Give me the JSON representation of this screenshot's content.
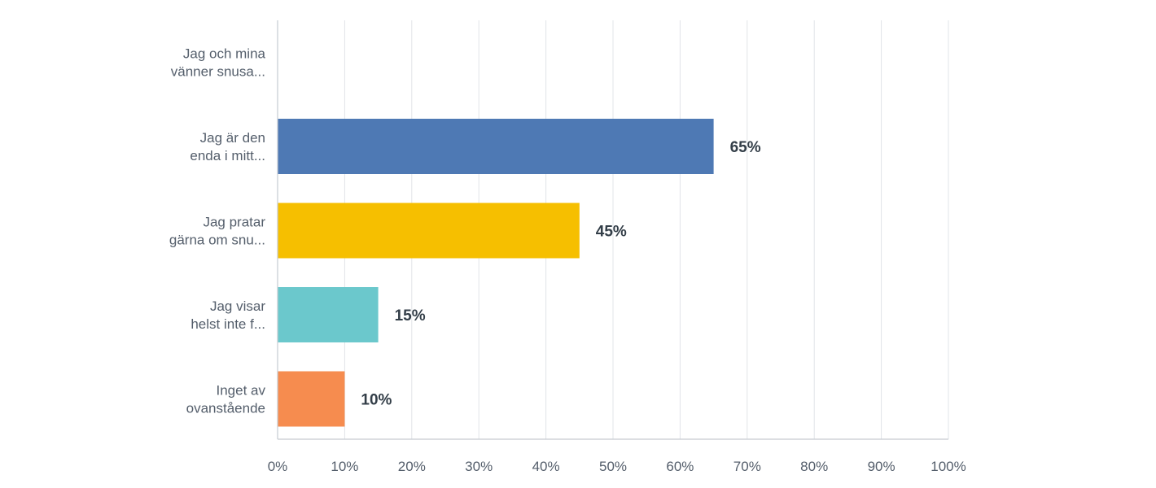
{
  "chart_data": {
    "type": "bar",
    "orientation": "horizontal",
    "categories": [
      [
        "Jag och mina",
        "vänner snusa..."
      ],
      [
        "Jag är den",
        "enda i mitt..."
      ],
      [
        "Jag pratar",
        "gärna om snu..."
      ],
      [
        "Jag visar",
        "helst inte f..."
      ],
      [
        "Inget av",
        "ovanstående"
      ]
    ],
    "values": [
      0,
      65,
      45,
      15,
      10
    ],
    "value_labels": [
      "",
      "65%",
      "45%",
      "15%",
      "10%"
    ],
    "colors": [
      "#4e79b4",
      "#4e79b4",
      "#f6bf00",
      "#6bc8cc",
      "#f68c4f"
    ],
    "xlim": [
      0,
      100
    ],
    "x_ticks": [
      0,
      10,
      20,
      30,
      40,
      50,
      60,
      70,
      80,
      90,
      100
    ],
    "x_tick_labels": [
      "0%",
      "10%",
      "20%",
      "30%",
      "40%",
      "50%",
      "60%",
      "70%",
      "80%",
      "90%",
      "100%"
    ],
    "grid": true,
    "legend": "none",
    "title": "",
    "xlabel": "",
    "ylabel": ""
  }
}
